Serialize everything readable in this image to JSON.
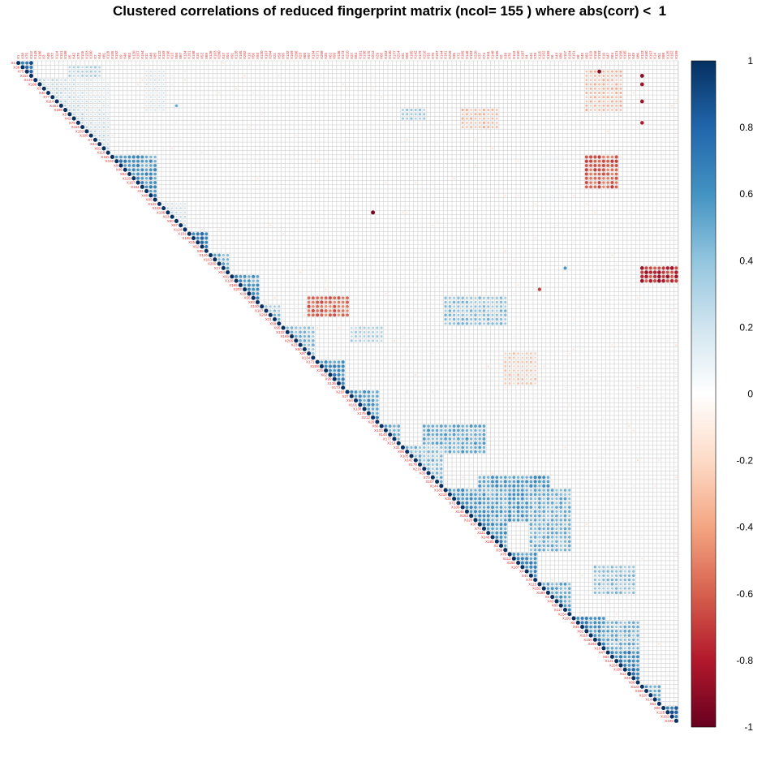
{
  "chart_data": {
    "type": "heatmap",
    "title": "Clustered correlations of reduced fingerprint matrix (ncol= 155 ) where abs(corr) <  1",
    "layout": "upper-triangle",
    "n": 155,
    "colorbar": {
      "ticks": [
        1,
        0.8,
        0.6,
        0.4,
        0.2,
        0,
        -0.2,
        -0.4,
        -0.6,
        -0.8,
        -1
      ],
      "range": [
        -1,
        1
      ],
      "colors": [
        "#67001F",
        "#B2182B",
        "#D6604D",
        "#F4A582",
        "#FDDBC7",
        "#FFFFFF",
        "#D1E5F0",
        "#92C5DE",
        "#4393C3",
        "#2166AC",
        "#053061"
      ]
    },
    "diagonal_blocks": [
      {
        "start": 0,
        "end": 4,
        "value": 0.95
      },
      {
        "start": 4,
        "end": 22,
        "value": 0.35
      },
      {
        "start": 22,
        "end": 33,
        "value": 0.75
      },
      {
        "start": 33,
        "end": 40,
        "value": 0.3
      },
      {
        "start": 40,
        "end": 45,
        "value": 0.85
      },
      {
        "start": 45,
        "end": 50,
        "value": 0.6
      },
      {
        "start": 50,
        "end": 57,
        "value": 0.7
      },
      {
        "start": 57,
        "end": 62,
        "value": 0.5
      },
      {
        "start": 62,
        "end": 70,
        "value": 0.55
      },
      {
        "start": 70,
        "end": 77,
        "value": 0.75
      },
      {
        "start": 77,
        "end": 85,
        "value": 0.7
      },
      {
        "start": 85,
        "end": 90,
        "value": 0.6
      },
      {
        "start": 90,
        "end": 100,
        "value": 0.55
      },
      {
        "start": 100,
        "end": 115,
        "value": 0.7
      },
      {
        "start": 115,
        "end": 122,
        "value": 0.75
      },
      {
        "start": 122,
        "end": 130,
        "value": 0.65
      },
      {
        "start": 130,
        "end": 138,
        "value": 0.75
      },
      {
        "start": 138,
        "end": 146,
        "value": 0.8
      },
      {
        "start": 146,
        "end": 151,
        "value": 0.6
      },
      {
        "start": 151,
        "end": 155,
        "value": 0.95
      }
    ],
    "offdiagonal_blocks": [
      {
        "r0": 1,
        "r1": 8,
        "c0": 12,
        "c1": 20,
        "value": 0.35
      },
      {
        "r0": 2,
        "r1": 12,
        "c0": 30,
        "c1": 35,
        "value": 0.2
      },
      {
        "r0": 2,
        "r1": 12,
        "c0": 133,
        "c1": 142,
        "value": -0.35
      },
      {
        "r0": 22,
        "r1": 30,
        "c0": 133,
        "c1": 141,
        "value": -0.65
      },
      {
        "r0": 22,
        "r1": 33,
        "c0": 122,
        "c1": 128,
        "value": 0.1
      },
      {
        "r0": 48,
        "r1": 52,
        "c0": 146,
        "c1": 155,
        "value": -0.8
      },
      {
        "r0": 55,
        "r1": 60,
        "c0": 68,
        "c1": 78,
        "value": -0.6
      },
      {
        "r0": 55,
        "r1": 62,
        "c0": 100,
        "c1": 115,
        "value": 0.45
      },
      {
        "r0": 11,
        "r1": 16,
        "c0": 104,
        "c1": 113,
        "value": -0.35
      },
      {
        "r0": 11,
        "r1": 14,
        "c0": 90,
        "c1": 96,
        "value": 0.4
      },
      {
        "r0": 62,
        "r1": 66,
        "c0": 78,
        "c1": 86,
        "value": 0.35
      },
      {
        "r0": 68,
        "r1": 76,
        "c0": 114,
        "c1": 122,
        "value": -0.3
      },
      {
        "r0": 85,
        "r1": 92,
        "c0": 95,
        "c1": 110,
        "value": 0.55
      },
      {
        "r0": 97,
        "r1": 108,
        "c0": 108,
        "c1": 125,
        "value": 0.6
      },
      {
        "r0": 100,
        "r1": 115,
        "c0": 120,
        "c1": 130,
        "value": 0.5
      },
      {
        "r0": 118,
        "r1": 125,
        "c0": 135,
        "c1": 145,
        "value": 0.45
      },
      {
        "r0": 131,
        "r1": 138,
        "c0": 138,
        "c1": 146,
        "value": 0.5
      }
    ],
    "point_cells": [
      {
        "r": 35,
        "c": 83,
        "value": -0.95
      },
      {
        "r": 2,
        "c": 136,
        "value": -0.9
      },
      {
        "r": 3,
        "c": 146,
        "value": -0.9
      },
      {
        "r": 5,
        "c": 146,
        "value": -0.85
      },
      {
        "r": 9,
        "c": 146,
        "value": -0.85
      },
      {
        "r": 14,
        "c": 146,
        "value": -0.8
      },
      {
        "r": 53,
        "c": 122,
        "value": -0.7
      },
      {
        "r": 10,
        "c": 37,
        "value": 0.5
      },
      {
        "r": 48,
        "c": 128,
        "value": 0.6
      }
    ]
  }
}
